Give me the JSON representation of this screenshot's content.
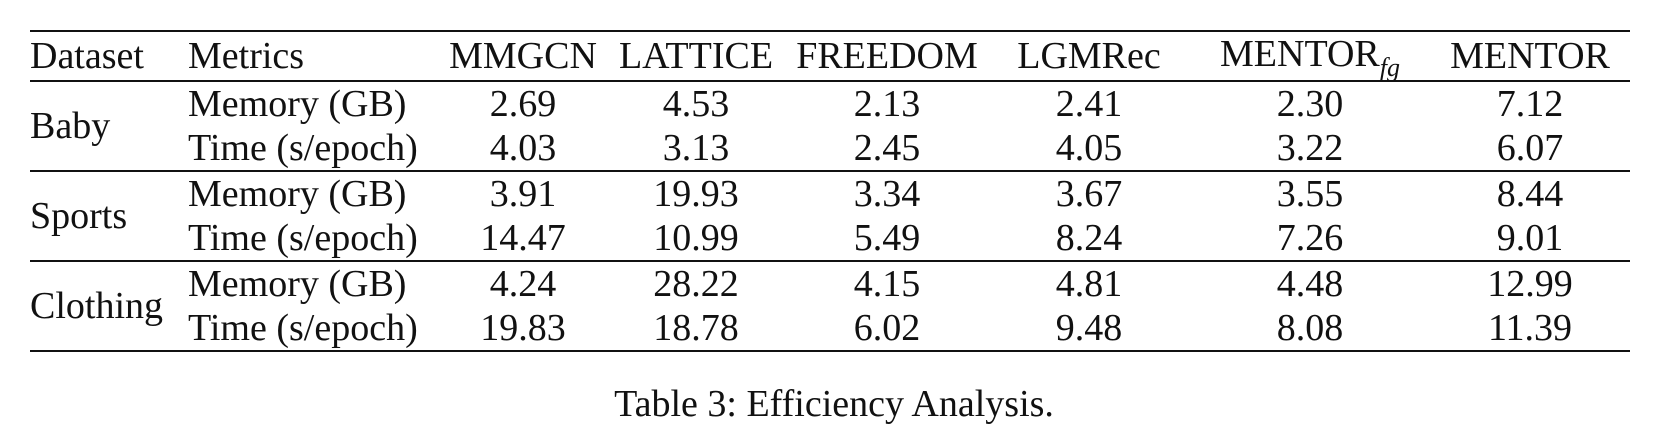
{
  "table": {
    "header": {
      "dataset": "Dataset",
      "metrics": "Metrics",
      "methods": [
        {
          "base": "MMGCN",
          "sub": ""
        },
        {
          "base": "LATTICE",
          "sub": ""
        },
        {
          "base": "FREEDOM",
          "sub": ""
        },
        {
          "base": "LGMRec",
          "sub": ""
        },
        {
          "base": "MENTOR",
          "sub": "fg"
        },
        {
          "base": "MENTOR",
          "sub": ""
        }
      ]
    },
    "groups": [
      {
        "dataset": "Baby",
        "rows": [
          {
            "metric": "Memory (GB)",
            "values": [
              "2.69",
              "4.53",
              "2.13",
              "2.41",
              "2.30",
              "7.12"
            ]
          },
          {
            "metric": "Time (s/epoch)",
            "values": [
              "4.03",
              "3.13",
              "2.45",
              "4.05",
              "3.22",
              "6.07"
            ]
          }
        ]
      },
      {
        "dataset": "Sports",
        "rows": [
          {
            "metric": "Memory (GB)",
            "values": [
              "3.91",
              "19.93",
              "3.34",
              "3.67",
              "3.55",
              "8.44"
            ]
          },
          {
            "metric": "Time (s/epoch)",
            "values": [
              "14.47",
              "10.99",
              "5.49",
              "8.24",
              "7.26",
              "9.01"
            ]
          }
        ]
      },
      {
        "dataset": "Clothing",
        "rows": [
          {
            "metric": "Memory (GB)",
            "values": [
              "4.24",
              "28.22",
              "4.15",
              "4.81",
              "4.48",
              "12.99"
            ]
          },
          {
            "metric": "Time (s/epoch)",
            "values": [
              "19.83",
              "18.78",
              "6.02",
              "9.48",
              "8.08",
              "11.39"
            ]
          }
        ]
      }
    ]
  },
  "caption": "Table 3: Efficiency Analysis."
}
